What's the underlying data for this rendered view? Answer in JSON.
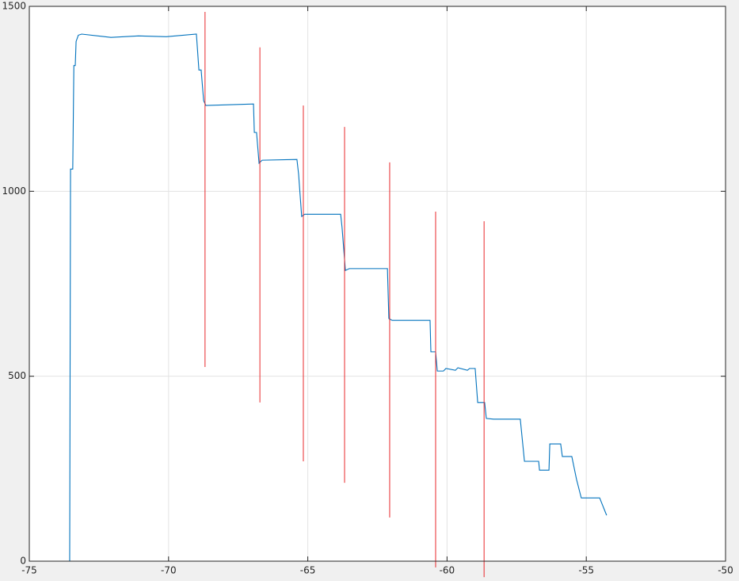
{
  "chart_data": {
    "type": "line",
    "xlim": [
      -75,
      -50
    ],
    "ylim": [
      0,
      1500
    ],
    "xticks": [
      -75,
      -70,
      -65,
      -60,
      -55,
      -50
    ],
    "yticks": [
      0,
      500,
      1000,
      1500
    ],
    "grid": true,
    "series": [
      {
        "color": "#0072bd",
        "x": [
          -74.2,
          -73.55,
          -73.52,
          -73.44,
          -73.4,
          -73.35,
          -73.32,
          -73.24,
          -73.12,
          -72.07,
          -71.08,
          -70.08,
          -69.0,
          -68.91,
          -68.83,
          -68.74,
          -68.66,
          -66.95,
          -66.92,
          -66.84,
          -66.75,
          -66.64,
          -65.39,
          -65.33,
          -65.22,
          -65.11,
          -63.82,
          -63.77,
          -63.65,
          -63.51,
          -62.14,
          -62.09,
          -61.97,
          -60.61,
          -60.58,
          -60.41,
          -60.35,
          -60.13,
          -60.04,
          -59.7,
          -59.61,
          -59.27,
          -59.19,
          -58.99,
          -58.9,
          -58.65,
          -58.59,
          -58.33,
          -57.37,
          -57.22,
          -56.71,
          -56.68,
          -56.34,
          -56.31,
          -55.92,
          -55.86,
          -55.52,
          -55.35,
          -55.18,
          -54.52,
          -54.27
        ],
        "values": [
          0,
          0,
          1060,
          1060,
          1340,
          1340,
          1405,
          1422,
          1425,
          1416,
          1420,
          1418,
          1425,
          1328,
          1328,
          1245,
          1232,
          1236,
          1159,
          1159,
          1076,
          1084,
          1086,
          1046,
          932,
          938,
          938,
          902,
          786,
          791,
          791,
          656,
          651,
          651,
          566,
          566,
          514,
          514,
          521,
          516,
          523,
          516,
          521,
          521,
          429,
          429,
          386,
          384,
          384,
          270,
          270,
          246,
          246,
          317,
          317,
          283,
          283,
          221,
          171,
          171,
          124
        ]
      }
    ],
    "vlines": {
      "color": "#e8282b",
      "x": [
        -68.69,
        -66.72,
        -65.16,
        -63.68,
        -62.06,
        -60.41,
        -58.67
      ],
      "ymin": [
        525,
        429,
        270,
        212,
        118,
        -17,
        -43
      ],
      "ymax": [
        1485,
        1389,
        1232,
        1174,
        1078,
        945,
        919
      ]
    }
  }
}
